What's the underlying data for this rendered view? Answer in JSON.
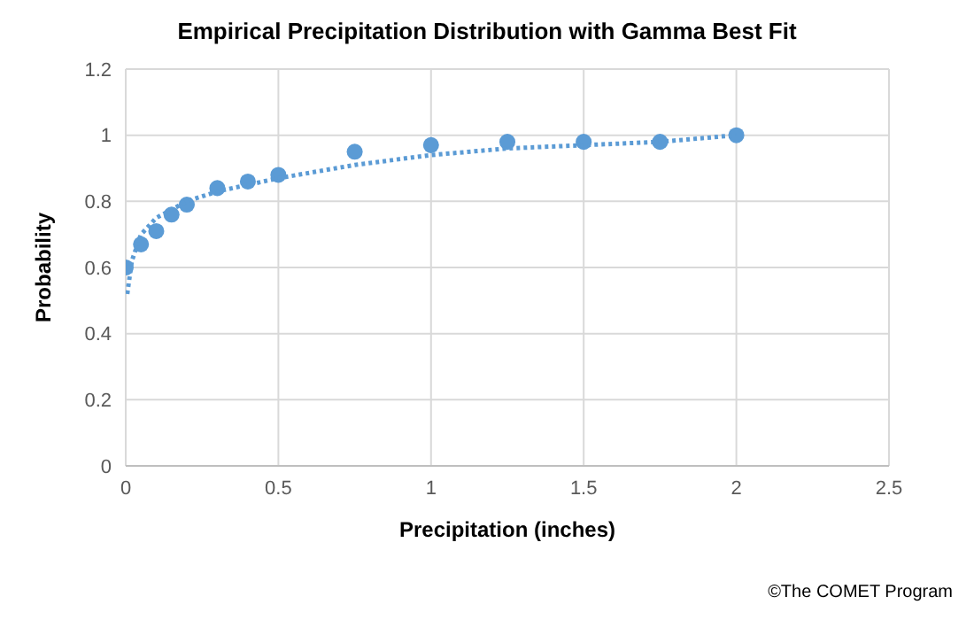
{
  "chart_data": {
    "type": "scatter",
    "title": "Empirical Precipitation Distribution with Gamma Best Fit",
    "xlabel": "Precipitation (inches)",
    "ylabel": "Probability",
    "series": [
      {
        "type": "scatter",
        "color": "#5b9bd5",
        "marker": "circle",
        "x": [
          0,
          0.05,
          0.1,
          0.15,
          0.2,
          0.3,
          0.4,
          0.5,
          0.75,
          1,
          1.25,
          1.5,
          1.75,
          2
        ],
        "values": [
          0.6,
          0.67,
          0.71,
          0.76,
          0.79,
          0.84,
          0.86,
          0.88,
          0.95,
          0.97,
          0.98,
          0.98,
          0.98,
          1.0
        ]
      },
      {
        "type": "line",
        "color": "#5b9bd5",
        "marker": "none",
        "line_style": "dotted",
        "x": [
          0.005,
          0.02,
          0.05,
          0.1,
          0.2,
          0.3,
          0.5,
          0.75,
          1,
          1.25,
          1.5,
          1.75,
          2
        ],
        "values": [
          0.52,
          0.62,
          0.7,
          0.75,
          0.8,
          0.83,
          0.87,
          0.91,
          0.94,
          0.96,
          0.97,
          0.98,
          1.0
        ]
      }
    ],
    "xlim": [
      0,
      2.5
    ],
    "xticks": [
      0,
      0.5,
      1,
      1.5,
      2,
      2.5
    ],
    "ylim": [
      0,
      1.2
    ],
    "yticks": [
      0,
      0.2,
      0.4,
      0.6,
      0.8,
      1,
      1.2
    ],
    "grid": true,
    "annotations": [
      "©The COMET Program"
    ]
  }
}
